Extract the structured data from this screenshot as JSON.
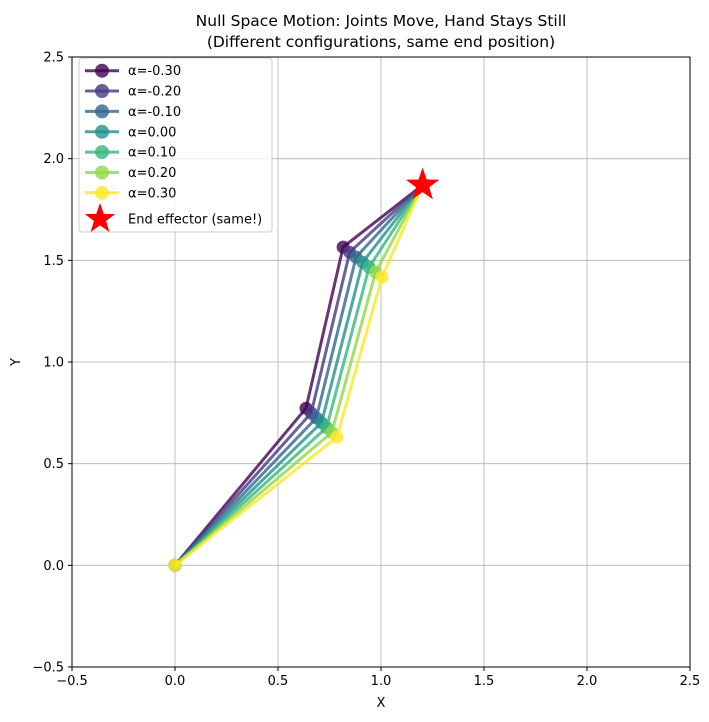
{
  "chart_data": {
    "type": "line",
    "title": "Null Space Motion: Joints Move, Hand Stays Still",
    "subtitle": "(Different configurations, same end position)",
    "xlabel": "X",
    "ylabel": "Y",
    "xlim": [
      -0.5,
      2.5
    ],
    "ylim": [
      -0.5,
      2.5
    ],
    "xticks": {
      "values": [
        -0.5,
        0.0,
        0.5,
        1.0,
        1.5,
        2.0,
        2.5
      ],
      "labels": [
        "−0.5",
        "0.0",
        "0.5",
        "1.0",
        "1.5",
        "2.0",
        "2.5"
      ]
    },
    "yticks": {
      "values": [
        -0.5,
        0.0,
        0.5,
        1.0,
        1.5,
        2.0,
        2.5
      ],
      "labels": [
        "−0.5",
        "0.0",
        "0.5",
        "1.0",
        "1.5",
        "2.0",
        "2.5"
      ]
    },
    "grid": true,
    "grid_color": "#b0b0b0",
    "legend_position": "upper-left",
    "line_opacity": 0.8,
    "series": [
      {
        "label": "α=-0.30",
        "alpha": -0.3,
        "color": "#440154",
        "points": [
          [
            0.0,
            0.0
          ],
          [
            0.636,
            0.773
          ],
          [
            0.816,
            1.565
          ],
          [
            1.202,
            1.87
          ]
        ]
      },
      {
        "label": "α=-0.20",
        "alpha": -0.2,
        "color": "#443983",
        "points": [
          [
            0.0,
            0.0
          ],
          [
            0.661,
            0.749
          ],
          [
            0.848,
            1.54
          ],
          [
            1.202,
            1.87
          ]
        ]
      },
      {
        "label": "α=-0.10",
        "alpha": -0.1,
        "color": "#31688e",
        "points": [
          [
            0.0,
            0.0
          ],
          [
            0.686,
            0.725
          ],
          [
            0.879,
            1.516
          ],
          [
            1.202,
            1.87
          ]
        ]
      },
      {
        "label": "α=0.00",
        "alpha": 0.0,
        "color": "#21918c",
        "points": [
          [
            0.0,
            0.0
          ],
          [
            0.711,
            0.702
          ],
          [
            0.911,
            1.491
          ],
          [
            1.202,
            1.87
          ]
        ]
      },
      {
        "label": "α=0.10",
        "alpha": 0.1,
        "color": "#35b779",
        "points": [
          [
            0.0,
            0.0
          ],
          [
            0.736,
            0.678
          ],
          [
            0.942,
            1.466
          ],
          [
            1.202,
            1.87
          ]
        ]
      },
      {
        "label": "α=0.20",
        "alpha": 0.2,
        "color": "#90d743",
        "points": [
          [
            0.0,
            0.0
          ],
          [
            0.761,
            0.654
          ],
          [
            0.974,
            1.442
          ],
          [
            1.202,
            1.87
          ]
        ]
      },
      {
        "label": "α=0.30",
        "alpha": 0.3,
        "color": "#fde725",
        "points": [
          [
            0.0,
            0.0
          ],
          [
            0.786,
            0.63
          ],
          [
            1.005,
            1.417
          ],
          [
            1.202,
            1.87
          ]
        ]
      }
    ],
    "end_effector": {
      "label": "End effector (same!)",
      "point": [
        1.202,
        1.87
      ],
      "color": "#ff0000",
      "marker": "star"
    }
  }
}
